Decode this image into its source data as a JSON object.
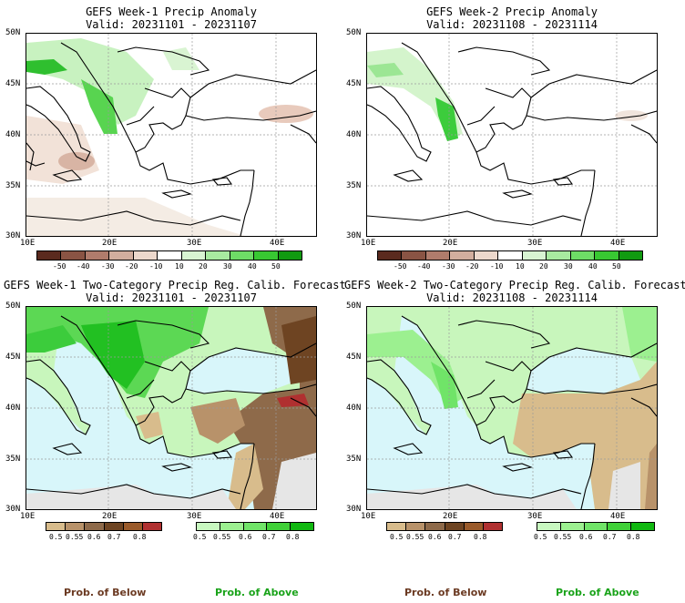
{
  "panels": {
    "p1": {
      "title": "GEFS Week-1 Precip Anomaly",
      "valid": "Valid: 20231101 - 20231107"
    },
    "p2": {
      "title": "GEFS Week-2 Precip Anomaly",
      "valid": "Valid: 20231108 - 20231114"
    },
    "p3": {
      "title": "GEFS Week-1 Two-Category Precip Reg. Calib. Forecast",
      "valid": "Valid: 20231101 - 20231107"
    },
    "p4": {
      "title": "GEFS Week-2 Two-Category Precip Reg. Calib. Forecast",
      "valid": "Valid: 20231108 - 20231114"
    }
  },
  "axes": {
    "lat": [
      "50N",
      "45N",
      "40N",
      "35N",
      "30N"
    ],
    "lon": [
      "10E",
      "20E",
      "30E",
      "40E"
    ]
  },
  "anomaly_colorbar": {
    "labels": [
      "-50",
      "-40",
      "-30",
      "-20",
      "-10",
      "10",
      "20",
      "30",
      "40",
      "50"
    ],
    "colors": [
      "#5a2a1e",
      "#8a5444",
      "#b07c6c",
      "#d2ae9e",
      "#ecd8cc",
      "#ffffff",
      "#d8f4d2",
      "#a8eaa0",
      "#6edc66",
      "#38c832",
      "#119a11"
    ]
  },
  "prob_below_colorbar": {
    "labels": [
      "0.5",
      "0.55",
      "0.6",
      "0.7",
      "0.8"
    ],
    "colors": [
      "#d8bc8c",
      "#b8926a",
      "#8e6a4a",
      "#6e4422",
      "#9a5a2a",
      "#b03030"
    ]
  },
  "prob_above_colorbar": {
    "labels": [
      "0.5",
      "0.55",
      "0.6",
      "0.7",
      "0.8"
    ],
    "colors": [
      "#c8f8c0",
      "#9cf090",
      "#70e468",
      "#40d038",
      "#10b810"
    ]
  },
  "footer": {
    "below": "Prob. of Below",
    "above": "Prob. of Above",
    "below_color": "#6b3a22",
    "above_color": "#1aa31a"
  },
  "colors": {
    "sea_prob": "#d8f6fa",
    "nodata": "#e6e6e6",
    "coast": "#000000"
  }
}
